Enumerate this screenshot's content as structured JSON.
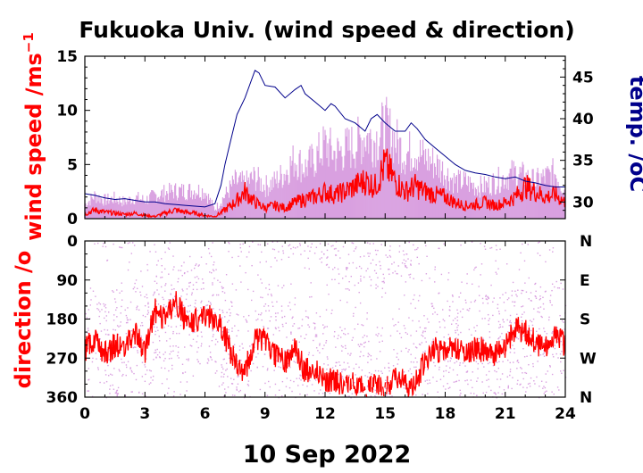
{
  "chart_data": [
    {
      "type": "line",
      "title": "Fukuoka Univ. (wind speed & direction)",
      "ylabel": "wind speed /ms",
      "ylabel_sup": "−1",
      "y2label": "temp. /",
      "y2label_unit": "oC",
      "xlim": [
        0,
        24
      ],
      "ylim": [
        0,
        15
      ],
      "y2lim": [
        28,
        47.5
      ],
      "yticks": [
        "0",
        "5",
        "10",
        "15"
      ],
      "y2ticks": [
        "30",
        "35",
        "40",
        "45"
      ],
      "colors": {
        "gust": "#d9a0e0",
        "wind_speed": "#ff0000",
        "temperature": "#00008b"
      },
      "series": [
        {
          "id": "gust",
          "x": [
            0,
            0.5,
            1,
            1.5,
            2,
            2.5,
            3,
            3.5,
            4,
            4.5,
            5,
            5.5,
            6,
            6.5,
            7,
            7.5,
            8,
            8.5,
            9,
            9.5,
            10,
            10.5,
            11,
            11.5,
            12,
            12.5,
            13,
            13.5,
            14,
            14.5,
            15,
            15.5,
            16,
            16.5,
            17,
            17.5,
            18,
            18.5,
            19,
            19.5,
            20,
            20.5,
            21,
            21.5,
            22,
            22.5,
            23,
            23.5,
            24
          ],
          "values": [
            1.5,
            2.5,
            2.0,
            2.2,
            1.8,
            2.3,
            2.0,
            2.5,
            2.8,
            3.0,
            3.0,
            3.1,
            3.0,
            1.0,
            2.5,
            4.0,
            3.8,
            4.5,
            3.5,
            4.0,
            5.0,
            6.5,
            5.5,
            6.5,
            8.0,
            7.0,
            7.5,
            8.0,
            9.0,
            8.5,
            10.0,
            8.5,
            7.0,
            7.5,
            6.5,
            6.0,
            5.0,
            4.0,
            4.0,
            3.5,
            3.5,
            4.0,
            4.5,
            5.0,
            4.5,
            4.0,
            4.5,
            5.0,
            3.0
          ]
        },
        {
          "id": "wind_speed",
          "x": [
            0,
            0.5,
            1,
            1.5,
            2,
            2.5,
            3,
            3.5,
            4,
            4.5,
            5,
            5.5,
            6,
            6.5,
            7,
            7.5,
            8,
            8.5,
            9,
            9.5,
            10,
            10.5,
            11,
            11.5,
            12,
            12.5,
            13,
            13.5,
            14,
            14.5,
            15,
            15.5,
            16,
            16.5,
            17,
            17.5,
            18,
            18.5,
            19,
            19.5,
            20,
            20.5,
            21,
            21.5,
            22,
            22.5,
            23,
            23.5,
            24
          ],
          "values": [
            0.4,
            0.8,
            0.6,
            0.5,
            0.4,
            0.5,
            0.3,
            0.2,
            0.5,
            0.8,
            0.6,
            0.5,
            0.3,
            0.2,
            0.8,
            1.5,
            2.5,
            1.5,
            1.0,
            1.2,
            1.0,
            1.5,
            1.8,
            2.0,
            2.5,
            2.2,
            2.5,
            3.0,
            3.5,
            3.0,
            5.0,
            3.5,
            2.5,
            3.0,
            2.5,
            2.2,
            2.0,
            1.5,
            1.2,
            1.3,
            1.5,
            1.2,
            1.5,
            2.0,
            3.0,
            2.5,
            2.0,
            2.2,
            1.5
          ]
        },
        {
          "id": "temperature",
          "axis": "y2",
          "x": [
            0,
            0.5,
            1,
            1.5,
            2,
            2.5,
            3,
            3.5,
            4,
            4.5,
            5,
            5.5,
            6,
            6.5,
            6.8,
            7,
            7.3,
            7.6,
            8,
            8.3,
            8.5,
            8.7,
            9,
            9.5,
            10,
            10.5,
            10.8,
            11,
            11.5,
            12,
            12.3,
            12.5,
            13,
            13.5,
            14,
            14.3,
            14.6,
            15,
            15.5,
            16,
            16.3,
            16.6,
            17,
            17.5,
            18,
            18.5,
            19,
            19.5,
            20,
            20.5,
            21,
            21.5,
            22,
            22.5,
            23,
            23.5,
            24
          ],
          "values": [
            31.0,
            30.8,
            30.5,
            30.3,
            30.4,
            30.2,
            30.0,
            30.0,
            29.8,
            29.7,
            29.6,
            29.5,
            29.4,
            29.8,
            32.0,
            34.5,
            37.5,
            40.5,
            42.5,
            44.5,
            45.8,
            45.5,
            44.0,
            43.8,
            42.5,
            43.5,
            44.0,
            43.0,
            42.0,
            41.0,
            41.8,
            41.5,
            40.0,
            39.5,
            38.5,
            40.0,
            40.5,
            39.5,
            38.5,
            38.5,
            39.5,
            38.8,
            37.5,
            36.5,
            35.5,
            34.5,
            33.8,
            33.5,
            33.3,
            33.0,
            32.8,
            33.0,
            32.5,
            32.3,
            32.0,
            31.8,
            31.8
          ]
        }
      ]
    },
    {
      "type": "scatter",
      "ylabel": "direction /",
      "ylabel_unit": "o",
      "xlabel": "10 Sep 2022",
      "xlim": [
        0,
        24
      ],
      "ylim": [
        0,
        360
      ],
      "y_inverted": true,
      "xticks": [
        "0",
        "3",
        "6",
        "9",
        "12",
        "15",
        "18",
        "21",
        "24"
      ],
      "yticks": [
        "0",
        "90",
        "180",
        "270",
        "360"
      ],
      "y2ticks": [
        "N",
        "E",
        "S",
        "W",
        "N"
      ],
      "colors": {
        "instant": "#d9a0e0",
        "mean": "#ff0000"
      },
      "series": [
        {
          "id": "direction_mean",
          "x": [
            0,
            0.5,
            1,
            1.5,
            2,
            2.5,
            3,
            3.5,
            4,
            4.5,
            5,
            5.5,
            6,
            6.5,
            7,
            7.5,
            8,
            8.5,
            9,
            9.5,
            10,
            10.5,
            11,
            11.5,
            12,
            12.5,
            13,
            13.5,
            14,
            14.5,
            15,
            15.5,
            16,
            16.5,
            17,
            17.5,
            18,
            18.5,
            19,
            19.5,
            20,
            20.5,
            21,
            21.5,
            22,
            22.5,
            23,
            23.5,
            24
          ],
          "values": [
            250,
            230,
            260,
            240,
            250,
            210,
            260,
            160,
            180,
            140,
            180,
            180,
            180,
            175,
            220,
            280,
            300,
            220,
            230,
            260,
            280,
            250,
            300,
            290,
            320,
            320,
            340,
            330,
            340,
            330,
            350,
            310,
            330,
            330,
            270,
            250,
            260,
            240,
            260,
            250,
            250,
            260,
            240,
            200,
            210,
            230,
            250,
            210,
            240
          ]
        }
      ]
    }
  ]
}
